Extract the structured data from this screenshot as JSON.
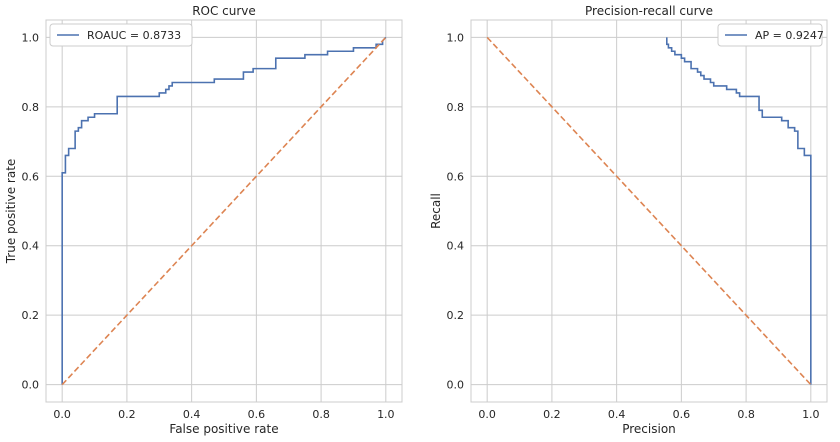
{
  "chart_data": [
    {
      "type": "line",
      "title": "ROC curve",
      "xlabel": "False positive rate",
      "ylabel": "True positive rate",
      "xlim": [
        -0.05,
        1.05
      ],
      "ylim": [
        -0.05,
        1.05
      ],
      "xticks": [
        0.0,
        0.2,
        0.4,
        0.6,
        0.8,
        1.0
      ],
      "yticks": [
        0.0,
        0.2,
        0.4,
        0.6,
        0.8,
        1.0
      ],
      "xtick_labels": [
        "0.0",
        "0.2",
        "0.4",
        "0.6",
        "0.8",
        "1.0"
      ],
      "ytick_labels": [
        "0.0",
        "0.2",
        "0.4",
        "0.6",
        "0.8",
        "1.0"
      ],
      "grid": true,
      "legend_position": "upper-left",
      "series": [
        {
          "name": "ROAUC = 0.8733",
          "color": "#4c72b0",
          "style": "solid",
          "x": [
            0.0,
            0.0,
            0.01,
            0.01,
            0.02,
            0.02,
            0.04,
            0.04,
            0.05,
            0.05,
            0.06,
            0.06,
            0.08,
            0.08,
            0.1,
            0.1,
            0.17,
            0.17,
            0.19,
            0.19,
            0.3,
            0.3,
            0.32,
            0.32,
            0.33,
            0.33,
            0.34,
            0.34,
            0.36,
            0.36,
            0.47,
            0.47,
            0.56,
            0.56,
            0.59,
            0.59,
            0.66,
            0.66,
            0.75,
            0.75,
            0.82,
            0.82,
            0.9,
            0.9,
            0.97,
            0.97,
            0.99,
            0.99,
            1.0
          ],
          "y": [
            0.0,
            0.61,
            0.61,
            0.66,
            0.66,
            0.68,
            0.68,
            0.73,
            0.73,
            0.74,
            0.74,
            0.76,
            0.76,
            0.77,
            0.77,
            0.78,
            0.78,
            0.83,
            0.83,
            0.83,
            0.83,
            0.84,
            0.84,
            0.85,
            0.85,
            0.86,
            0.86,
            0.87,
            0.87,
            0.87,
            0.87,
            0.88,
            0.88,
            0.9,
            0.9,
            0.91,
            0.91,
            0.94,
            0.94,
            0.95,
            0.95,
            0.96,
            0.96,
            0.97,
            0.97,
            0.98,
            0.98,
            0.99,
            1.0
          ]
        },
        {
          "color": "#dd8452",
          "style": "dashed",
          "x": [
            0.0,
            1.0
          ],
          "y": [
            0.0,
            1.0
          ]
        }
      ]
    },
    {
      "type": "line",
      "title": "Precision-recall curve",
      "xlabel": "Precision",
      "ylabel": "Recall",
      "xlim": [
        -0.05,
        1.05
      ],
      "ylim": [
        -0.05,
        1.05
      ],
      "xticks": [
        0.0,
        0.2,
        0.4,
        0.6,
        0.8,
        1.0
      ],
      "yticks": [
        0.0,
        0.2,
        0.4,
        0.6,
        0.8,
        1.0
      ],
      "xtick_labels": [
        "0.0",
        "0.2",
        "0.4",
        "0.6",
        "0.8",
        "1.0"
      ],
      "ytick_labels": [
        "0.0",
        "0.2",
        "0.4",
        "0.6",
        "0.8",
        "1.0"
      ],
      "grid": true,
      "legend_position": "upper-right",
      "series": [
        {
          "name": "AP = 0.9247",
          "color": "#4c72b0",
          "style": "solid",
          "x": [
            0.555,
            0.555,
            0.56,
            0.56,
            0.57,
            0.57,
            0.58,
            0.58,
            0.6,
            0.6,
            0.61,
            0.61,
            0.63,
            0.63,
            0.65,
            0.65,
            0.66,
            0.66,
            0.67,
            0.67,
            0.69,
            0.69,
            0.7,
            0.7,
            0.74,
            0.74,
            0.77,
            0.77,
            0.78,
            0.78,
            0.79,
            0.79,
            0.8,
            0.8,
            0.84,
            0.84,
            0.85,
            0.85,
            0.86,
            0.86,
            0.91,
            0.91,
            0.93,
            0.93,
            0.95,
            0.95,
            0.96,
            0.96,
            0.98,
            0.98,
            1.0,
            1.0
          ],
          "y": [
            1.0,
            0.98,
            0.98,
            0.97,
            0.97,
            0.96,
            0.96,
            0.95,
            0.95,
            0.94,
            0.94,
            0.93,
            0.93,
            0.91,
            0.91,
            0.9,
            0.9,
            0.89,
            0.89,
            0.88,
            0.88,
            0.87,
            0.87,
            0.86,
            0.86,
            0.85,
            0.85,
            0.84,
            0.84,
            0.83,
            0.83,
            0.83,
            0.83,
            0.83,
            0.83,
            0.79,
            0.79,
            0.77,
            0.77,
            0.77,
            0.77,
            0.76,
            0.76,
            0.74,
            0.74,
            0.73,
            0.73,
            0.68,
            0.68,
            0.66,
            0.66,
            0.0
          ]
        },
        {
          "color": "#dd8452",
          "style": "dashed",
          "x": [
            0.0,
            1.0
          ],
          "y": [
            1.0,
            0.0
          ]
        }
      ]
    }
  ]
}
